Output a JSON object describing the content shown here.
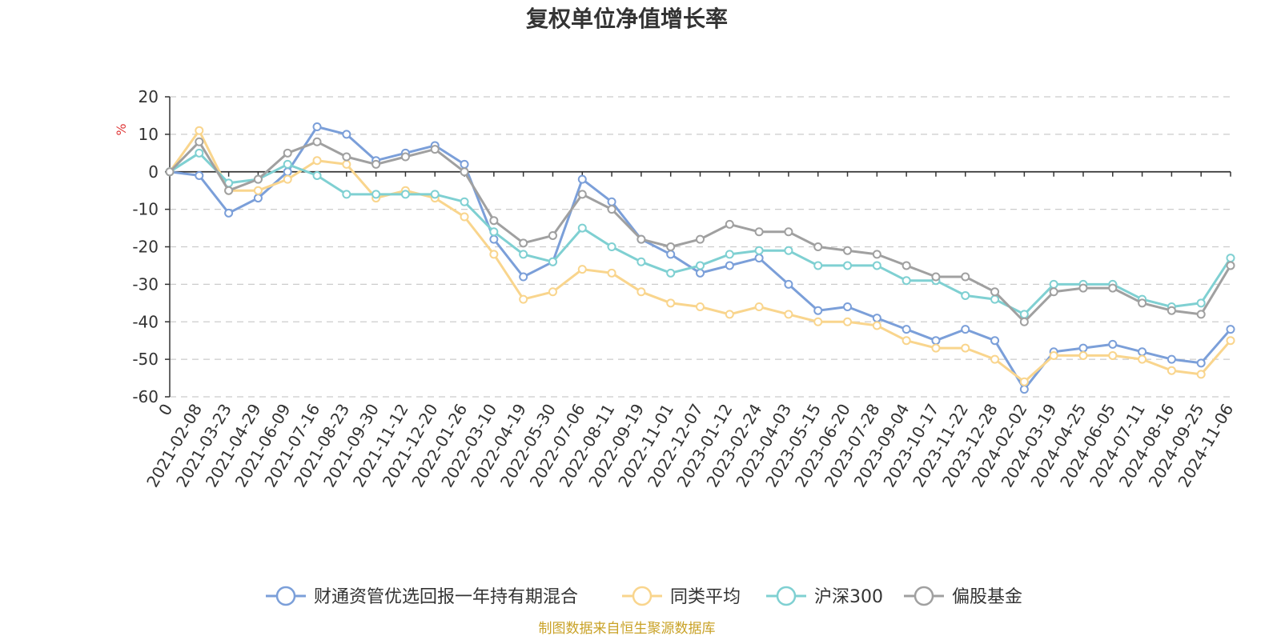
{
  "chart_data": {
    "type": "line",
    "title": "复权单位净值增长率",
    "ylabel": "%",
    "xlabel": "",
    "ylim": [
      -60,
      20
    ],
    "yticks": [
      20,
      10,
      0,
      -10,
      -20,
      -30,
      -40,
      -50,
      -60
    ],
    "grid": true,
    "legend_position": "bottom",
    "source_note": "制图数据来自恒生聚源数据库",
    "categories": [
      "0",
      "2021-02-08",
      "2021-03-23",
      "2021-04-29",
      "2021-06-09",
      "2021-07-16",
      "2021-08-23",
      "2021-09-30",
      "2021-11-12",
      "2021-12-20",
      "2022-01-26",
      "2022-03-10",
      "2022-04-19",
      "2022-05-30",
      "2022-07-06",
      "2022-08-11",
      "2022-09-19",
      "2022-11-01",
      "2022-12-07",
      "2023-01-12",
      "2023-02-24",
      "2023-04-03",
      "2023-05-15",
      "2023-06-20",
      "2023-07-28",
      "2023-09-04",
      "2023-10-17",
      "2023-11-22",
      "2023-12-28",
      "2024-02-02",
      "2024-03-19",
      "2024-04-25",
      "2024-06-05",
      "2024-07-11",
      "2024-08-16",
      "2024-09-25",
      "2024-11-06"
    ],
    "series": [
      {
        "name": "财通资管优选回报一年持有期混合",
        "color": "#7b9fd9",
        "values": [
          0,
          -1,
          -11,
          -7,
          0,
          12,
          10,
          3,
          5,
          7,
          2,
          -18,
          -28,
          -24,
          -2,
          -8,
          -18,
          -22,
          -27,
          -25,
          -23,
          -30,
          -37,
          -36,
          -39,
          -42,
          -45,
          -42,
          -45,
          -58,
          -48,
          -47,
          -46,
          -48,
          -50,
          -51,
          -42
        ]
      },
      {
        "name": "同类平均",
        "color": "#f9d58d",
        "values": [
          0,
          11,
          -5,
          -5,
          -2,
          3,
          2,
          -7,
          -5,
          -7,
          -12,
          -22,
          -34,
          -32,
          -26,
          -27,
          -32,
          -35,
          -36,
          -38,
          -36,
          -38,
          -40,
          -40,
          -41,
          -45,
          -47,
          -47,
          -50,
          -56,
          -49,
          -49,
          -49,
          -50,
          -53,
          -54,
          -45
        ]
      },
      {
        "name": "沪深300",
        "color": "#7fd0d2",
        "values": [
          0,
          5,
          -3,
          -2,
          2,
          -1,
          -6,
          -6,
          -6,
          -6,
          -8,
          -16,
          -22,
          -24,
          -15,
          -20,
          -24,
          -27,
          -25,
          -22,
          -21,
          -21,
          -25,
          -25,
          -25,
          -29,
          -29,
          -33,
          -34,
          -38,
          -30,
          -30,
          -30,
          -34,
          -36,
          -35,
          -23
        ]
      },
      {
        "name": "偏股基金",
        "color": "#a0a0a0",
        "values": [
          0,
          8,
          -5,
          -2,
          5,
          8,
          4,
          2,
          4,
          6,
          0,
          -13,
          -19,
          -17,
          -6,
          -10,
          -18,
          -20,
          -18,
          -14,
          -16,
          -16,
          -20,
          -21,
          -22,
          -25,
          -28,
          -28,
          -32,
          -40,
          -32,
          -31,
          -31,
          -35,
          -37,
          -38,
          -25
        ]
      }
    ]
  }
}
